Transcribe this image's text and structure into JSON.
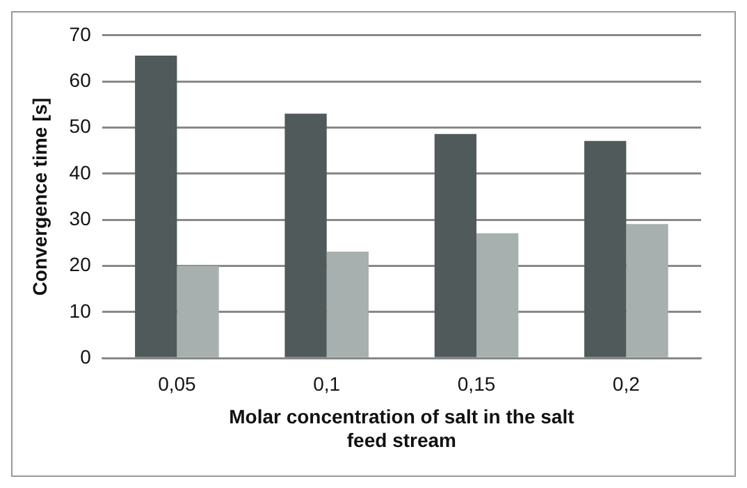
{
  "chart_data": {
    "type": "bar",
    "xlabel": "Molar concentration of salt in the salt feed stream",
    "ylabel": "Convergence time [s]",
    "categories": [
      "0,05",
      "0,1",
      "0,15",
      "0,2"
    ],
    "series": [
      {
        "color": "#505a5a",
        "values": [
          65.6,
          53,
          48.6,
          47.1
        ]
      },
      {
        "color": "#a7b0ae",
        "values": [
          20,
          23.1,
          27.1,
          29.1
        ]
      }
    ],
    "ylim": [
      0,
      70
    ],
    "yticks": [
      0,
      10,
      20,
      30,
      40,
      50,
      60,
      70
    ],
    "grid": "y"
  }
}
